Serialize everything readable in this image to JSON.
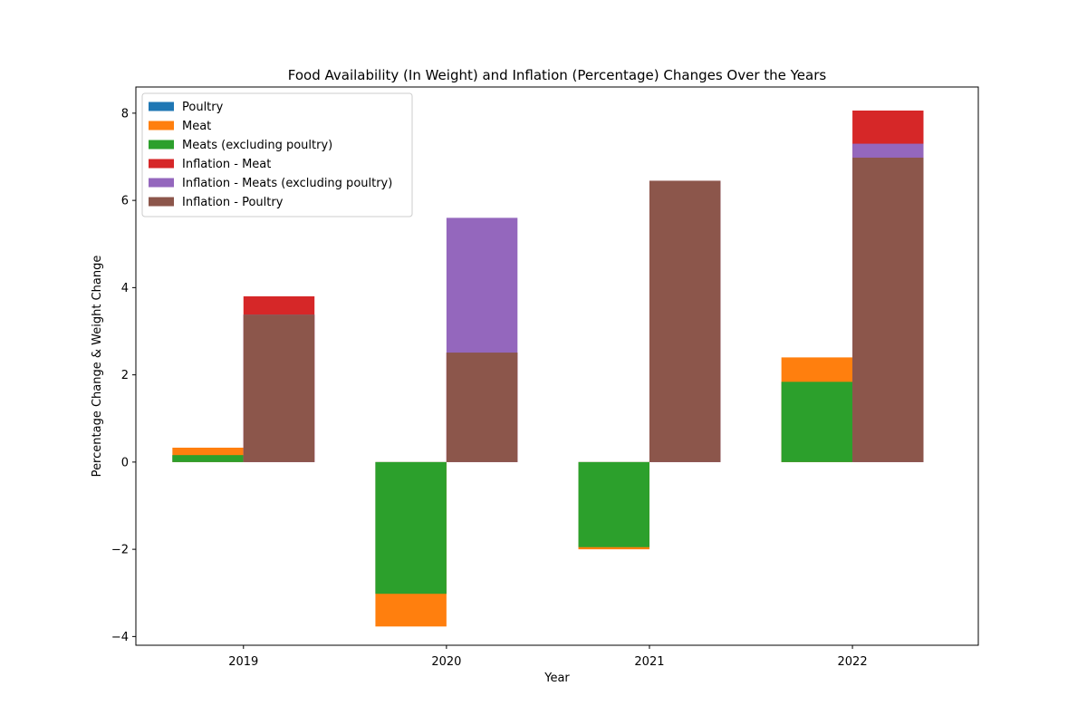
{
  "chart_data": {
    "type": "bar",
    "title": "Food Availability (In Weight) and Inflation (Percentage) Changes Over the Years",
    "xlabel": "Year",
    "ylabel": "Percentage Change & Weight Change",
    "categories": [
      "2019",
      "2020",
      "2021",
      "2022"
    ],
    "ylim": [
      -4.2,
      8.6
    ],
    "yticks": [
      -4,
      -2,
      0,
      2,
      4,
      6,
      8
    ],
    "ytick_labels": [
      "−4",
      "−2",
      "0",
      "2",
      "4",
      "6",
      "8"
    ],
    "grid": false,
    "legend_position": "top-left",
    "series": [
      {
        "name": "Poultry",
        "group": "weight",
        "color": "#1f77b4",
        "values": [
          0.16,
          -3.02,
          -1.95,
          1.84
        ]
      },
      {
        "name": "Meat",
        "group": "weight",
        "color": "#ff7f0e",
        "values": [
          0.33,
          -3.77,
          -2.0,
          2.4
        ]
      },
      {
        "name": "Meats (excluding poultry)",
        "group": "weight",
        "color": "#2ca02c",
        "values": [
          0.16,
          -3.02,
          -1.95,
          1.84
        ]
      },
      {
        "name": "Inflation - Meat",
        "group": "inflation",
        "color": "#d62728",
        "values": [
          3.8,
          2.51,
          6.45,
          8.06
        ]
      },
      {
        "name": "Inflation - Meats (excluding poultry)",
        "group": "inflation",
        "color": "#9467bd",
        "values": [
          3.38,
          5.6,
          6.45,
          7.3
        ]
      },
      {
        "name": "Inflation - Poultry",
        "group": "inflation",
        "color": "#8c564b",
        "values": [
          3.38,
          2.51,
          6.45,
          6.98
        ]
      }
    ]
  }
}
